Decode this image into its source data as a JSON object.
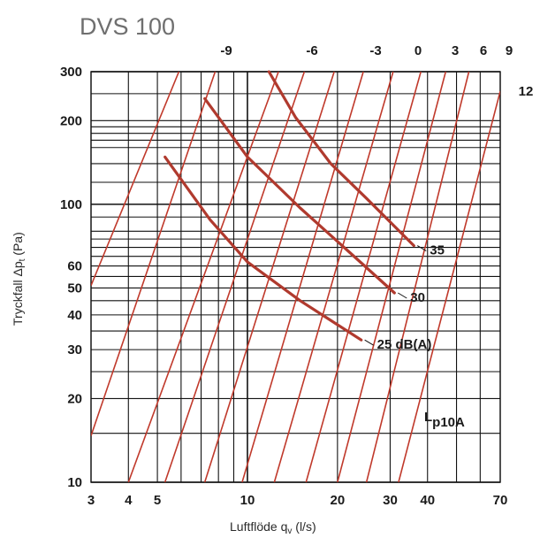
{
  "chart_data": {
    "type": "line",
    "title": "DVS 100",
    "xlabel": "Luftflöde q",
    "xlabel_sub": "v",
    "xlabel_unit": " (l/s)",
    "ylabel": "Tryckfall Δp",
    "ylabel_sub": "t",
    "ylabel_unit": " (Pa)",
    "x_scale": "log",
    "y_scale": "log",
    "xlim": [
      3,
      70
    ],
    "ylim": [
      10,
      300
    ],
    "x_ticks": [
      3,
      4,
      5,
      10,
      20,
      30,
      40,
      70
    ],
    "x_tick_labels": [
      "3",
      "4",
      "5",
      "10",
      "20",
      "30",
      "40",
      "70"
    ],
    "y_ticks": [
      10,
      20,
      30,
      40,
      50,
      60,
      100,
      200,
      300
    ],
    "y_tick_labels": [
      "10",
      "20",
      "30",
      "40",
      "50",
      "60",
      "100",
      "200",
      "300"
    ],
    "grid": true,
    "setting_labels": [
      "-9",
      "-6",
      "-3",
      "0",
      "3",
      "6",
      "9",
      "12"
    ],
    "setting_lines": [
      {
        "label": "-9",
        "points": [
          [
            3,
            14.7
          ],
          [
            7.8,
            300
          ]
        ]
      },
      {
        "label": "-6",
        "points": [
          [
            3,
            51
          ],
          [
            5.9,
            300
          ]
        ]
      },
      {
        "label": "",
        "points": [
          [
            4,
            10
          ],
          [
            12.7,
            300
          ]
        ]
      },
      {
        "label": "",
        "points": [
          [
            5.3,
            10
          ],
          [
            15.5,
            300
          ]
        ]
      },
      {
        "label": "",
        "points": [
          [
            7.2,
            10
          ],
          [
            19.5,
            300
          ]
        ]
      },
      {
        "label": "-3",
        "points": [
          [
            9.6,
            10
          ],
          [
            24.4,
            300
          ]
        ]
      },
      {
        "label": "0",
        "points": [
          [
            12.3,
            10
          ],
          [
            30.7,
            300
          ]
        ]
      },
      {
        "label": "3",
        "points": [
          [
            15.7,
            10
          ],
          [
            38,
            300
          ]
        ]
      },
      {
        "label": "6",
        "points": [
          [
            20,
            10
          ],
          [
            46,
            300
          ]
        ]
      },
      {
        "label": "9",
        "points": [
          [
            25,
            10
          ],
          [
            55,
            300
          ]
        ]
      },
      {
        "label": "12",
        "points": [
          [
            32,
            10
          ],
          [
            70,
            255
          ]
        ]
      }
    ],
    "series": [
      {
        "name": "35",
        "points": [
          [
            11.8,
            300
          ],
          [
            14.5,
            205
          ],
          [
            19,
            140
          ],
          [
            25,
            105
          ],
          [
            36,
            71
          ]
        ]
      },
      {
        "name": "30",
        "points": [
          [
            7.2,
            240
          ],
          [
            10,
            148
          ],
          [
            15,
            97
          ],
          [
            22,
            67
          ],
          [
            31,
            48
          ]
        ]
      },
      {
        "name": "25 dB(A)",
        "points": [
          [
            5.3,
            148
          ],
          [
            7.5,
            88
          ],
          [
            10,
            62
          ],
          [
            15,
            45
          ],
          [
            24,
            32.5
          ]
        ]
      }
    ],
    "annotation": "L",
    "annotation_sub": "p10A"
  }
}
